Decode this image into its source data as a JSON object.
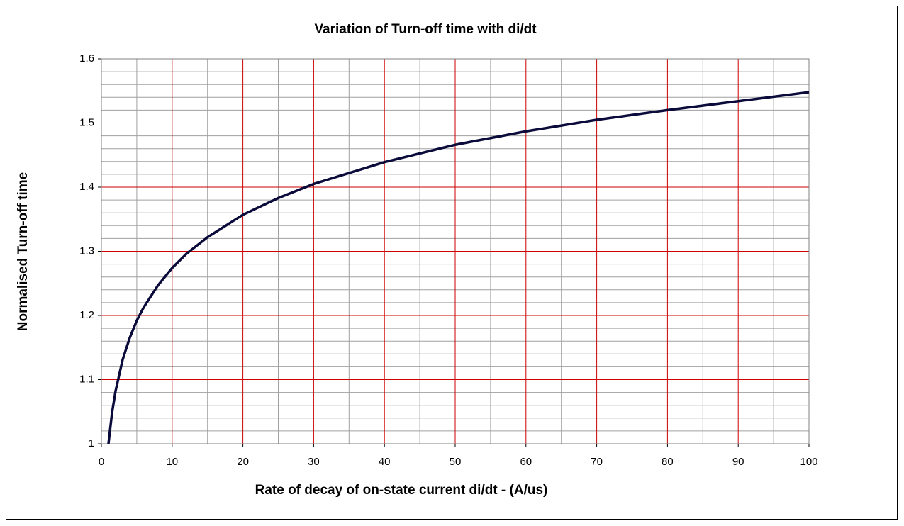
{
  "chart_data": {
    "type": "line",
    "title": "Variation of Turn-off time with di/dt",
    "x_label": "Rate of decay of on-state current di/dt - (A/us)",
    "y_label": "Normalised Turn-off time",
    "x": [
      1,
      1.5,
      2,
      3,
      4,
      5,
      6,
      8,
      10,
      12,
      15,
      20,
      25,
      30,
      40,
      50,
      60,
      70,
      80,
      90,
      100
    ],
    "series": [
      {
        "name": "Turn-off time",
        "color": "#0b0b3b",
        "values": [
          1.0,
          1.048,
          1.082,
          1.131,
          1.165,
          1.192,
          1.213,
          1.247,
          1.274,
          1.296,
          1.322,
          1.357,
          1.383,
          1.405,
          1.439,
          1.466,
          1.487,
          1.505,
          1.52,
          1.534,
          1.548
        ]
      }
    ],
    "xlim": [
      0,
      100
    ],
    "xticks": [
      0,
      10,
      20,
      30,
      40,
      50,
      60,
      70,
      80,
      90,
      100
    ],
    "ylim": [
      1,
      1.6
    ],
    "yticks": [
      1,
      1.1,
      1.2,
      1.3,
      1.4,
      1.5,
      1.6
    ],
    "xminorticks": [
      5,
      15,
      25,
      35,
      45,
      55,
      65,
      75,
      85,
      95
    ],
    "yminorticks": [
      1.02,
      1.04,
      1.06,
      1.08,
      1.12,
      1.14,
      1.16,
      1.18,
      1.22,
      1.24,
      1.26,
      1.28,
      1.32,
      1.34,
      1.36,
      1.38,
      1.42,
      1.44,
      1.46,
      1.48,
      1.52,
      1.54,
      1.56,
      1.58
    ],
    "grid": true,
    "major_grid_color": "#cc0000",
    "minor_grid_color": "#a0a0a0"
  }
}
